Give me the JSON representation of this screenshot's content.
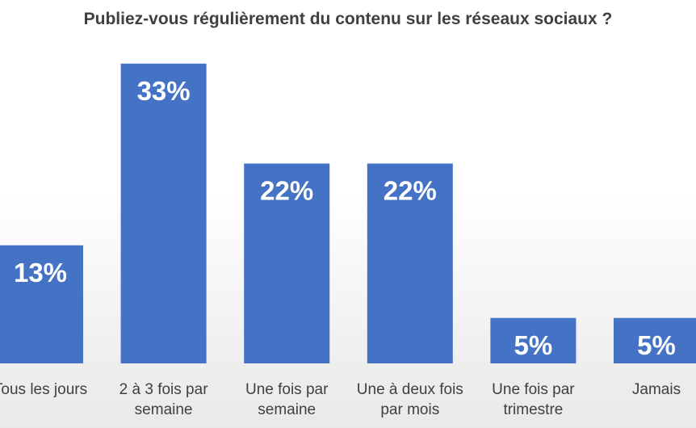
{
  "chart_data": {
    "type": "bar",
    "title": "Publiez-vous régulièrement du contenu sur les réseaux sociaux ?",
    "categories": [
      "Tous les jours",
      "2 à 3 fois par semaine",
      "Une fois par semaine",
      "Une à deux fois par mois",
      "Une fois par trimestre",
      "Jamais"
    ],
    "category_lines": [
      [
        "Tous les jours"
      ],
      [
        "2 à 3 fois par",
        "semaine"
      ],
      [
        "Une fois par",
        "semaine"
      ],
      [
        "Une à deux fois",
        "par mois"
      ],
      [
        "Une fois par",
        "trimestre"
      ],
      [
        "Jamais"
      ]
    ],
    "values": [
      13,
      33,
      22,
      22,
      5,
      5
    ],
    "value_labels": [
      "13%",
      "33%",
      "22%",
      "22%",
      "5%",
      "5%"
    ],
    "ylim": [
      0,
      36
    ],
    "grid": false,
    "legend": "none",
    "bar_color": "#4472C4"
  }
}
